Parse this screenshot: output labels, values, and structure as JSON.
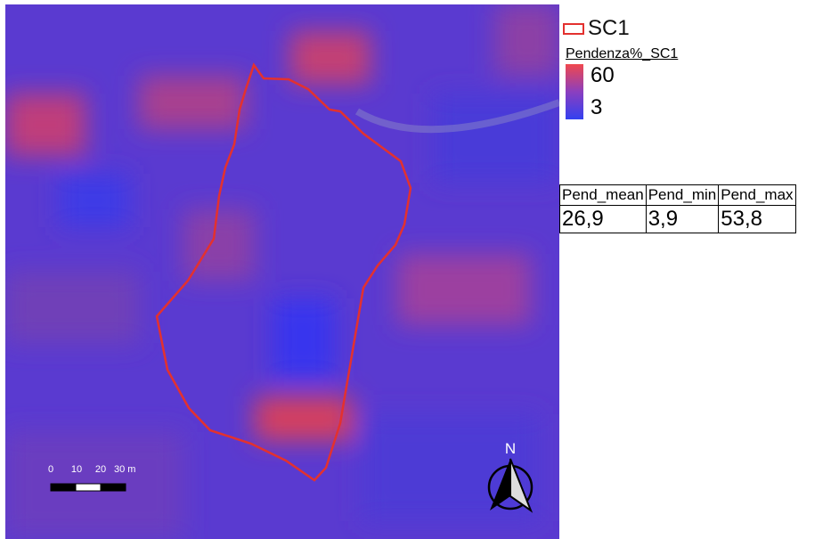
{
  "legend": {
    "layer": "SC1",
    "raster_title": "Pendenza%_SC1",
    "ramp_max": "60",
    "ramp_min": "3"
  },
  "table": {
    "headers": [
      "Pend_mean",
      "Pend_min",
      "Pend_max"
    ],
    "rows": [
      [
        "26,9",
        "3,9",
        "53,8"
      ]
    ]
  },
  "scale_bar": {
    "labels": [
      "0",
      "10",
      "20",
      "30 m"
    ]
  },
  "north_arrow": {
    "label": "N"
  }
}
